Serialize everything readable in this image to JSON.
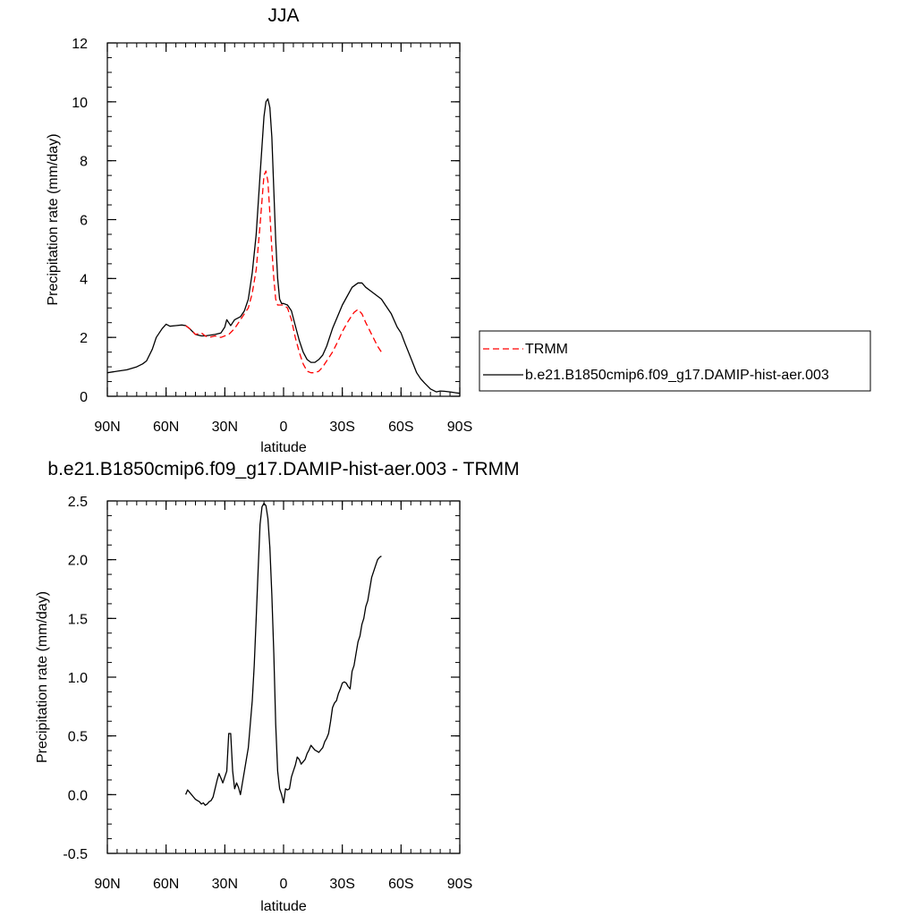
{
  "colors": {
    "model": "#000000",
    "obs": "#ff0000",
    "background": "#ffffff"
  },
  "chart_data": [
    {
      "type": "line",
      "title": "JJA",
      "xlabel": "latitude",
      "ylabel": "Precipitation rate (mm/day)",
      "xlim": [
        90,
        -90
      ],
      "ylim": [
        0,
        12
      ],
      "x_ticks": [
        90,
        60,
        30,
        0,
        -30,
        -60,
        -90
      ],
      "x_tick_labels": [
        "90N",
        "60N",
        "30N",
        "0",
        "30S",
        "60S",
        "90S"
      ],
      "y_ticks": [
        0,
        2,
        4,
        6,
        8,
        10,
        12
      ],
      "y_tick_labels": [
        "0",
        "2",
        "4",
        "6",
        "8",
        "10",
        "12"
      ],
      "legend": {
        "placement": "right",
        "entries": [
          "TRMM",
          "b.e21.B1850cmip6.f09_g17.DAMIP-hist-aer.003"
        ]
      },
      "series": [
        {
          "name": "b.e21.B1850cmip6.f09_g17.DAMIP-hist-aer.003",
          "style": "solid",
          "x": [
            90,
            85,
            80,
            75,
            72,
            70,
            67,
            65,
            62,
            60,
            58,
            55,
            52,
            50,
            48,
            45,
            42,
            40,
            35,
            32,
            30,
            29,
            28,
            27,
            26,
            25,
            22,
            20,
            18,
            16,
            14,
            12,
            10,
            9,
            8,
            7,
            6,
            5,
            4,
            3,
            2,
            1,
            0,
            -2,
            -4,
            -6,
            -8,
            -10,
            -12,
            -14,
            -16,
            -18,
            -20,
            -22,
            -25,
            -30,
            -35,
            -38,
            -40,
            -42,
            -45,
            -48,
            -50,
            -52,
            -55,
            -58,
            -60,
            -62,
            -65,
            -68,
            -70,
            -72,
            -75,
            -78,
            -80,
            -82,
            -85,
            -88,
            -90
          ],
          "values": [
            0.8,
            0.85,
            0.9,
            1.0,
            1.1,
            1.2,
            1.6,
            2.0,
            2.3,
            2.45,
            2.38,
            2.4,
            2.42,
            2.4,
            2.3,
            2.1,
            2.05,
            2.05,
            2.1,
            2.15,
            2.35,
            2.6,
            2.5,
            2.4,
            2.5,
            2.6,
            2.7,
            2.9,
            3.3,
            4.2,
            5.5,
            7.5,
            9.5,
            10.0,
            10.1,
            9.8,
            8.8,
            7.0,
            5.3,
            4.0,
            3.3,
            3.15,
            3.15,
            3.1,
            2.9,
            2.4,
            1.9,
            1.5,
            1.25,
            1.15,
            1.15,
            1.25,
            1.4,
            1.7,
            2.3,
            3.1,
            3.7,
            3.85,
            3.85,
            3.7,
            3.55,
            3.4,
            3.3,
            3.1,
            2.8,
            2.35,
            2.15,
            1.8,
            1.3,
            0.8,
            0.6,
            0.45,
            0.25,
            0.15,
            0.18,
            0.17,
            0.15,
            0.12,
            0.1
          ]
        },
        {
          "name": "TRMM",
          "style": "dashed",
          "x": [
            50,
            47,
            45,
            42,
            40,
            38,
            35,
            32,
            30,
            28,
            25,
            22,
            20,
            18,
            16,
            14,
            12,
            10,
            9,
            8,
            7,
            6,
            5,
            4,
            3,
            2,
            1,
            0,
            -2,
            -4,
            -6,
            -8,
            -10,
            -12,
            -14,
            -16,
            -18,
            -20,
            -22,
            -25,
            -28,
            -30,
            -33,
            -36,
            -38,
            -40,
            -42,
            -45,
            -48,
            -50
          ],
          "values": [
            2.4,
            2.25,
            2.1,
            2.15,
            2.05,
            2.0,
            2.05,
            2.0,
            2.05,
            2.1,
            2.3,
            2.6,
            2.8,
            3.0,
            3.5,
            4.3,
            5.8,
            7.5,
            7.65,
            7.3,
            6.2,
            5.0,
            4.0,
            3.3,
            3.1,
            3.1,
            3.1,
            3.1,
            3.0,
            2.6,
            2.0,
            1.5,
            1.1,
            0.85,
            0.8,
            0.8,
            0.85,
            1.0,
            1.2,
            1.5,
            1.9,
            2.2,
            2.55,
            2.85,
            2.95,
            2.8,
            2.5,
            2.1,
            1.7,
            1.5
          ]
        }
      ]
    },
    {
      "type": "line",
      "title": "b.e21.B1850cmip6.f09_g17.DAMIP-hist-aer.003 - TRMM",
      "xlabel": "latitude",
      "ylabel": "Precipitation rate (mm/day)",
      "xlim": [
        90,
        -90
      ],
      "ylim": [
        -0.5,
        2.5
      ],
      "x_ticks": [
        90,
        60,
        30,
        0,
        -30,
        -60,
        -90
      ],
      "x_tick_labels": [
        "90N",
        "60N",
        "30N",
        "0",
        "30S",
        "60S",
        "90S"
      ],
      "y_ticks": [
        -0.5,
        0.0,
        0.5,
        1.0,
        1.5,
        2.0,
        2.5
      ],
      "y_tick_labels": [
        "-0.5",
        "0.0",
        "0.5",
        "1.0",
        "1.5",
        "2.0",
        "2.5"
      ],
      "series": [
        {
          "style": "solid",
          "x": [
            50,
            49,
            48,
            47,
            46,
            45,
            44,
            43,
            42,
            41,
            40,
            39,
            38,
            37,
            36,
            35,
            34,
            33,
            32,
            31,
            30,
            29,
            28,
            27,
            26,
            25,
            24,
            23,
            22,
            21,
            20,
            19,
            18,
            17,
            16,
            15,
            14,
            13,
            12,
            11,
            10,
            9,
            8,
            7,
            6,
            5,
            4,
            3,
            2,
            1,
            0,
            -1,
            -2,
            -3,
            -4,
            -5,
            -6,
            -7,
            -8,
            -9,
            -10,
            -11,
            -12,
            -13,
            -14,
            -15,
            -16,
            -17,
            -18,
            -19,
            -20,
            -21,
            -22,
            -23,
            -24,
            -25,
            -26,
            -27,
            -28,
            -29,
            -30,
            -31,
            -32,
            -33,
            -34,
            -35,
            -36,
            -37,
            -38,
            -39,
            -40,
            -41,
            -42,
            -43,
            -44,
            -45,
            -46,
            -47,
            -48,
            -49,
            -50
          ],
          "values": [
            0.0,
            0.04,
            0.02,
            0.0,
            -0.02,
            -0.04,
            -0.05,
            -0.06,
            -0.08,
            -0.07,
            -0.09,
            -0.08,
            -0.06,
            -0.05,
            -0.02,
            0.05,
            0.12,
            0.18,
            0.14,
            0.1,
            0.15,
            0.2,
            0.52,
            0.52,
            0.2,
            0.05,
            0.1,
            0.06,
            0.0,
            0.1,
            0.2,
            0.3,
            0.4,
            0.6,
            0.8,
            1.1,
            1.5,
            1.9,
            2.3,
            2.45,
            2.48,
            2.46,
            2.35,
            2.1,
            1.7,
            1.2,
            0.6,
            0.2,
            0.05,
            0.0,
            -0.07,
            0.05,
            0.04,
            0.05,
            0.15,
            0.2,
            0.25,
            0.32,
            0.3,
            0.26,
            0.28,
            0.3,
            0.35,
            0.38,
            0.42,
            0.4,
            0.38,
            0.37,
            0.36,
            0.38,
            0.4,
            0.45,
            0.48,
            0.52,
            0.62,
            0.74,
            0.78,
            0.8,
            0.86,
            0.9,
            0.95,
            0.96,
            0.95,
            0.92,
            0.9,
            1.05,
            1.1,
            1.2,
            1.3,
            1.35,
            1.45,
            1.5,
            1.6,
            1.65,
            1.75,
            1.85,
            1.9,
            1.95,
            2.0,
            2.02,
            2.03
          ]
        }
      ]
    }
  ]
}
